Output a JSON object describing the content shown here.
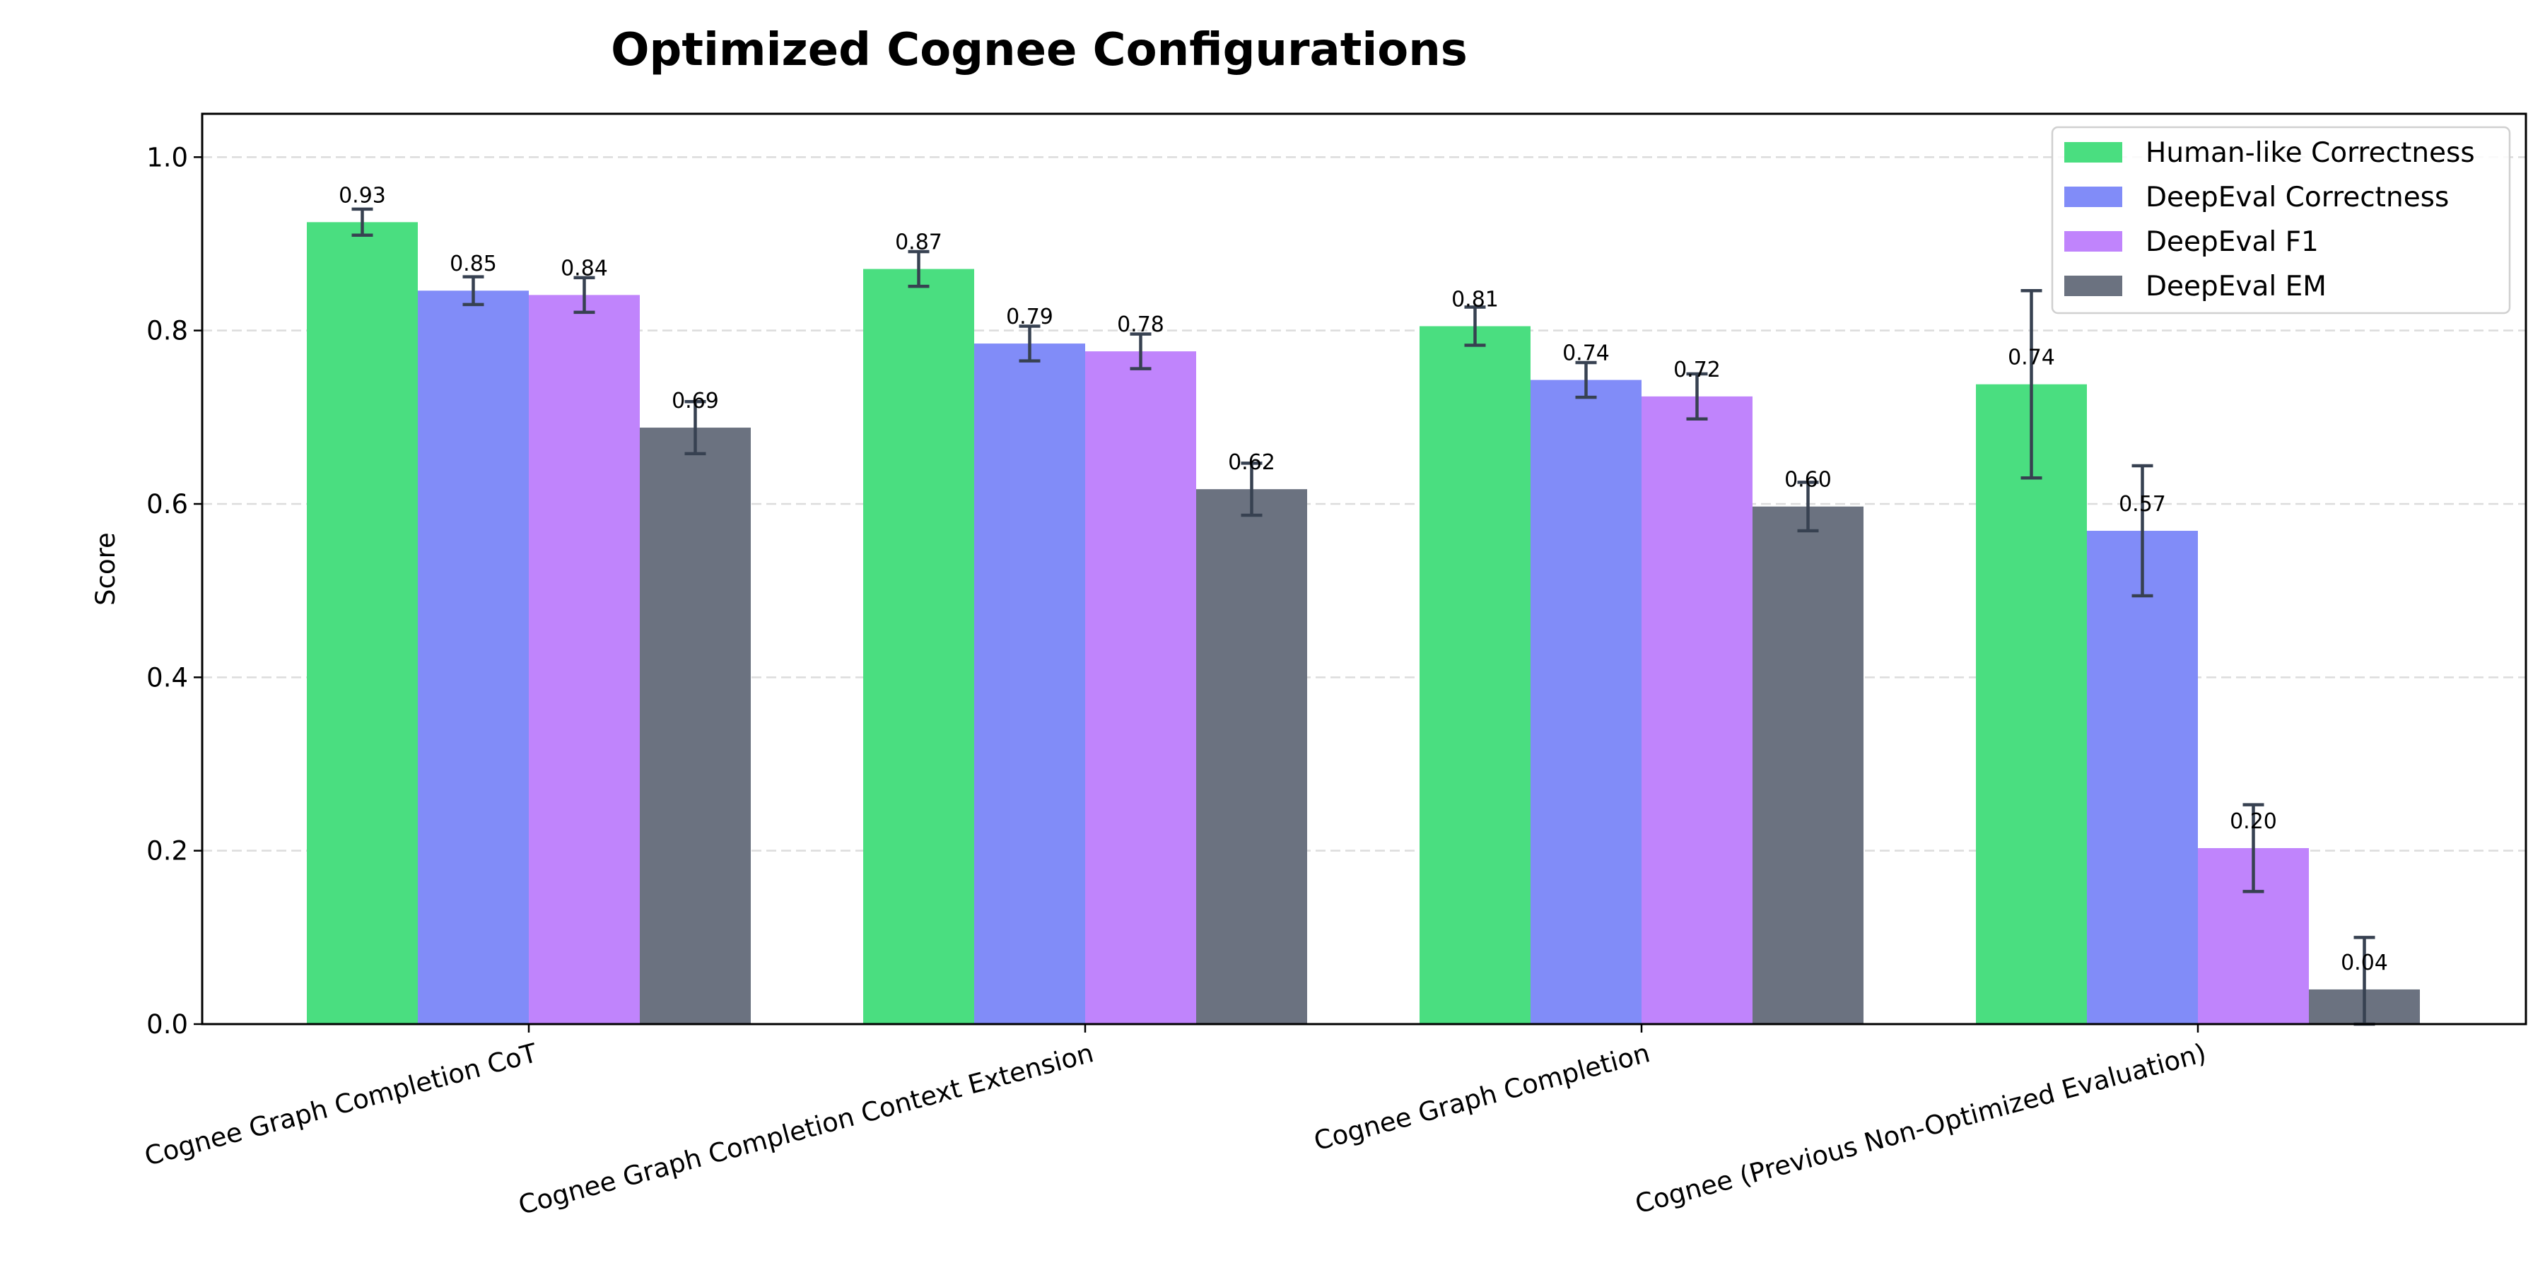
{
  "chart_data": {
    "type": "bar",
    "title": "Optimized Cognee Configurations",
    "xlabel": "",
    "ylabel": "Score",
    "ylim": [
      0,
      1.05
    ],
    "yticks": [
      "0.0",
      "0.2",
      "0.4",
      "0.6",
      "0.8",
      "1.0"
    ],
    "grid": "y-dashed",
    "legend_position": "top-right",
    "categories": [
      "Cognee Graph Completion CoT",
      "Cognee Graph Completion Context Extension",
      "Cognee Graph Completion",
      "Cognee (Previous Non-Optimized Evaluation)"
    ],
    "series": [
      {
        "name": "Human-like Correctness",
        "color": "#4ade80",
        "values": [
          0.925,
          0.871,
          0.805,
          0.738
        ],
        "labels": [
          "0.93",
          "0.87",
          "0.81",
          "0.74"
        ],
        "errors": [
          0.015,
          0.02,
          0.022,
          0.108
        ]
      },
      {
        "name": "DeepEval Correctness",
        "color": "#818cf8",
        "values": [
          0.846,
          0.785,
          0.743,
          0.569
        ],
        "labels": [
          "0.85",
          "0.79",
          "0.74",
          "0.57"
        ],
        "errors": [
          0.016,
          0.02,
          0.02,
          0.075
        ]
      },
      {
        "name": "DeepEval F1",
        "color": "#c084fc",
        "values": [
          0.841,
          0.776,
          0.724,
          0.203
        ],
        "labels": [
          "0.84",
          "0.78",
          "0.72",
          "0.20"
        ],
        "errors": [
          0.02,
          0.02,
          0.026,
          0.05
        ]
      },
      {
        "name": "DeepEval EM",
        "color": "#6b7280",
        "values": [
          0.688,
          0.617,
          0.597,
          0.04
        ],
        "labels": [
          "0.69",
          "0.62",
          "0.60",
          "0.04"
        ],
        "errors": [
          0.03,
          0.03,
          0.028,
          0.06
        ]
      }
    ],
    "error_bar_color": "#374151"
  }
}
